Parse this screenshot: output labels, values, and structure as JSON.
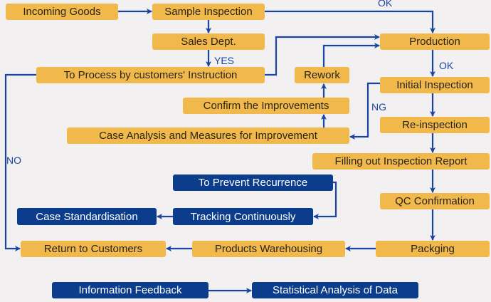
{
  "nodes": {
    "incoming_goods": "Incoming Goods",
    "sample_inspection": "Sample Inspection",
    "sales_dept": "Sales Dept.",
    "to_process": "To Process by customers' Instruction",
    "production": "Production",
    "rework": "Rework",
    "initial_inspection": "Initial Inspection",
    "confirm_improvements": "Confirm the Improvements",
    "case_analysis": "Case Analysis and Measures for Improvement",
    "re_inspection": "Re-inspection",
    "filling_report": "Filling out Inspection Report",
    "prevent_recurrence": "To Prevent Recurrence",
    "qc_confirmation": "QC Confirmation",
    "case_standardisation": "Case Standardisation",
    "tracking": "Tracking Continuously",
    "return_customers": "Return to Customers",
    "warehousing": "Products Warehousing",
    "packging": "Packging",
    "info_feedback": "Information Feedback",
    "statistical_analysis": "Statistical Analysis of Data"
  },
  "labels": {
    "ok_top": "OK",
    "yes": "YES",
    "ok_production": "OK",
    "ng": "NG",
    "no": "NO"
  },
  "colors": {
    "step": "#f1b94c",
    "feedback": "#0c3d8c",
    "arrow": "#1b46a0",
    "background": "#f2f0f1"
  }
}
